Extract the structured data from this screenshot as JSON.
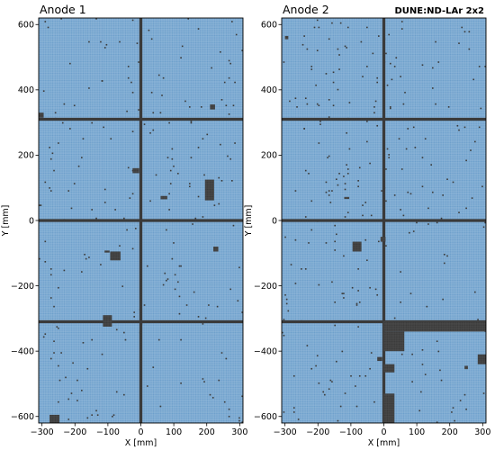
{
  "experiment_label": "DUNE:ND-LAr 2x2",
  "colors": {
    "active_pixel": "#6ea0cc",
    "inactive_pixel": "#3a3a3a",
    "grid_line": "#a9c8e3",
    "frame": "#000000"
  },
  "chart_data": [
    {
      "type": "heatmap",
      "title": "Anode 1",
      "xlabel": "X [mm]",
      "ylabel": "Y [mm]",
      "xlim": [
        -310,
        310
      ],
      "ylim": [
        -620,
        620
      ],
      "xticks": [
        -300,
        -200,
        -100,
        0,
        100,
        200,
        300
      ],
      "yticks": [
        -600,
        -400,
        -200,
        0,
        200,
        400,
        600
      ],
      "grid": true,
      "cell_size_mm": 4.434,
      "background_value": "active",
      "dead_lines": [
        {
          "orientation": "horizontal",
          "y": 310,
          "x_from": -310,
          "x_to": 310
        },
        {
          "orientation": "horizontal",
          "y": 0,
          "x_from": -310,
          "x_to": 310
        },
        {
          "orientation": "horizontal",
          "y": -310,
          "x_from": -310,
          "x_to": 310
        },
        {
          "orientation": "vertical",
          "x": 0,
          "y_from": -620,
          "y_to": 620
        }
      ],
      "dead_regions": [
        {
          "x": [
            195,
            222
          ],
          "y": [
            62,
            125
          ]
        },
        {
          "x": [
            -93,
            -62
          ],
          "y": [
            -122,
            -95
          ]
        },
        {
          "x": [
            -115,
            -88
          ],
          "y": [
            -325,
            -290
          ]
        },
        {
          "x": [
            -277,
            -247
          ],
          "y": [
            -620,
            -595
          ]
        },
        {
          "x": [
            -310,
            -295
          ],
          "y": [
            315,
            330
          ]
        },
        {
          "x": [
            -25,
            -5
          ],
          "y": [
            145,
            160
          ]
        },
        {
          "x": [
            60,
            80
          ],
          "y": [
            65,
            75
          ]
        },
        {
          "x": [
            210,
            225
          ],
          "y": [
            340,
            355
          ]
        },
        {
          "x": [
            220,
            235
          ],
          "y": [
            -95,
            -80
          ]
        },
        {
          "x": [
            -110,
            -95
          ],
          "y": [
            -98,
            -92
          ]
        }
      ],
      "scatter_dead_pixel_fraction": 0.006
    },
    {
      "type": "heatmap",
      "title": "Anode 2",
      "xlabel": "X [mm]",
      "ylabel": "Y [mm]",
      "xlim": [
        -310,
        310
      ],
      "ylim": [
        -620,
        620
      ],
      "xticks": [
        -300,
        -200,
        -100,
        0,
        100,
        200,
        300
      ],
      "yticks": [
        -600,
        -400,
        -200,
        0,
        200,
        400,
        600
      ],
      "grid": true,
      "cell_size_mm": 4.434,
      "background_value": "active",
      "dead_lines": [
        {
          "orientation": "horizontal",
          "y": 310,
          "x_from": -310,
          "x_to": 310
        },
        {
          "orientation": "horizontal",
          "y": 0,
          "x_from": -310,
          "x_to": 310
        },
        {
          "orientation": "horizontal",
          "y": -310,
          "x_from": -310,
          "x_to": 310
        },
        {
          "orientation": "vertical",
          "x": 0,
          "y_from": -620,
          "y_to": 620
        }
      ],
      "dead_regions": [
        {
          "x": [
            0,
            310
          ],
          "y": [
            -340,
            -310
          ]
        },
        {
          "x": [
            0,
            62
          ],
          "y": [
            -400,
            -340
          ]
        },
        {
          "x": [
            0,
            32
          ],
          "y": [
            -620,
            -530
          ]
        },
        {
          "x": [
            0,
            32
          ],
          "y": [
            -465,
            -440
          ]
        },
        {
          "x": [
            -95,
            -68
          ],
          "y": [
            -95,
            -65
          ]
        },
        {
          "x": [
            285,
            310
          ],
          "y": [
            -440,
            -410
          ]
        },
        {
          "x": [
            -20,
            -5
          ],
          "y": [
            -430,
            -418
          ]
        },
        {
          "x": [
            -10,
            5
          ],
          "y": [
            -65,
            -50
          ]
        },
        {
          "x": [
            -300,
            -290
          ],
          "y": [
            555,
            565
          ]
        },
        {
          "x": [
            245,
            255
          ],
          "y": [
            -455,
            -445
          ]
        },
        {
          "x": [
            -120,
            -105
          ],
          "y": [
            66,
            72
          ]
        }
      ],
      "scatter_dead_pixel_fraction": 0.007
    }
  ]
}
